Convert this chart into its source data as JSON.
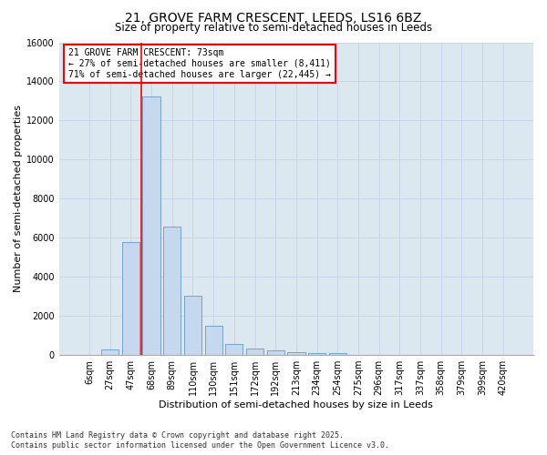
{
  "title_line1": "21, GROVE FARM CRESCENT, LEEDS, LS16 6BZ",
  "title_line2": "Size of property relative to semi-detached houses in Leeds",
  "xlabel": "Distribution of semi-detached houses by size in Leeds",
  "ylabel": "Number of semi-detached properties",
  "bar_labels": [
    "6sqm",
    "27sqm",
    "47sqm",
    "68sqm",
    "89sqm",
    "110sqm",
    "130sqm",
    "151sqm",
    "172sqm",
    "192sqm",
    "213sqm",
    "234sqm",
    "254sqm",
    "275sqm",
    "296sqm",
    "317sqm",
    "337sqm",
    "358sqm",
    "379sqm",
    "399sqm",
    "420sqm"
  ],
  "bar_values": [
    0,
    280,
    5800,
    13250,
    6550,
    3050,
    1500,
    580,
    350,
    230,
    130,
    80,
    80,
    0,
    0,
    0,
    0,
    0,
    0,
    0,
    0
  ],
  "bar_color": "#c5d8ee",
  "bar_edge_color": "#6699cc",
  "red_line_bar_index": 3,
  "highlight_color": "red",
  "annotation_title": "21 GROVE FARM CRESCENT: 73sqm",
  "annotation_line1": "← 27% of semi-detached houses are smaller (8,411)",
  "annotation_line2": "71% of semi-detached houses are larger (22,445) →",
  "annotation_box_facecolor": "white",
  "annotation_box_edgecolor": "red",
  "ylim": [
    0,
    16000
  ],
  "yticks": [
    0,
    2000,
    4000,
    6000,
    8000,
    10000,
    12000,
    14000,
    16000
  ],
  "grid_color": "#c8d4e8",
  "plot_bg_color": "#dce8f0",
  "fig_bg_color": "#ffffff",
  "title_fontsize": 10,
  "subtitle_fontsize": 8.5,
  "axis_label_fontsize": 8,
  "tick_fontsize": 7,
  "annotation_fontsize": 7,
  "footer_fontsize": 6,
  "footer_line1": "Contains HM Land Registry data © Crown copyright and database right 2025.",
  "footer_line2": "Contains public sector information licensed under the Open Government Licence v3.0."
}
